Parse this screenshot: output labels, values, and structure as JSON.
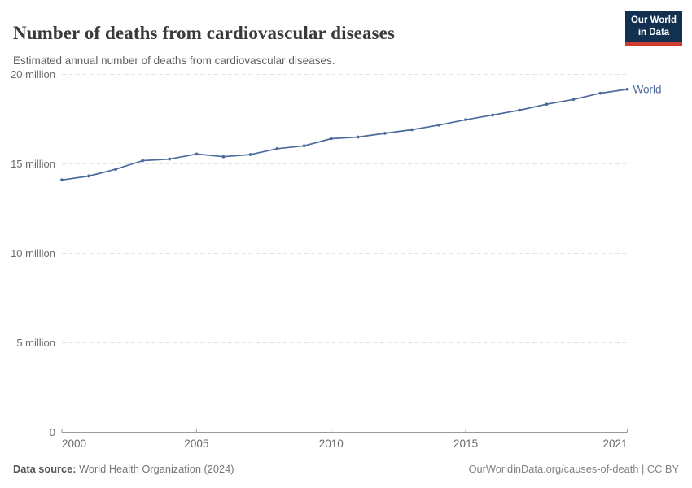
{
  "header": {
    "title": "Number of deaths from cardiovascular diseases",
    "subtitle": "Estimated annual number of deaths from cardiovascular diseases.",
    "logo": {
      "line1": "Our World",
      "line2": "in Data",
      "background_color": "#12304f",
      "stripe_color": "#cf3a31"
    }
  },
  "chart_data": {
    "type": "line",
    "title": "Number of deaths from cardiovascular diseases",
    "subtitle": "Estimated annual number of deaths from cardiovascular diseases.",
    "xlabel": "",
    "ylabel": "",
    "xlim": [
      2000,
      2021
    ],
    "ylim": [
      0,
      20000000
    ],
    "grid": "horizontal-dashed",
    "legend_position": "end-of-line",
    "x_ticks": [
      {
        "value": 2000,
        "label": "2000"
      },
      {
        "value": 2005,
        "label": "2005"
      },
      {
        "value": 2010,
        "label": "2010"
      },
      {
        "value": 2015,
        "label": "2015"
      },
      {
        "value": 2021,
        "label": "2021"
      }
    ],
    "y_ticks": [
      {
        "value": 0,
        "label": "0"
      },
      {
        "value": 5000000,
        "label": "5 million"
      },
      {
        "value": 10000000,
        "label": "10 million"
      },
      {
        "value": 15000000,
        "label": "15 million"
      },
      {
        "value": 20000000,
        "label": "20 million"
      }
    ],
    "series": [
      {
        "name": "World",
        "color": "#4c6a9c",
        "x": [
          2000,
          2001,
          2002,
          2003,
          2004,
          2005,
          2006,
          2007,
          2008,
          2009,
          2010,
          2011,
          2012,
          2013,
          2014,
          2015,
          2016,
          2017,
          2018,
          2019,
          2020,
          2021
        ],
        "values": [
          14100000,
          14320000,
          14700000,
          15180000,
          15270000,
          15550000,
          15400000,
          15520000,
          15850000,
          16010000,
          16410000,
          16500000,
          16710000,
          16910000,
          17170000,
          17470000,
          17730000,
          18000000,
          18330000,
          18600000,
          18950000,
          19170000
        ]
      }
    ]
  },
  "footer": {
    "source_label": "Data source:",
    "source_value": " World Health Organization (2024)",
    "license_url": "OurWorldinData.org/causes-of-death",
    "license_suffix": " | CC BY"
  },
  "colors": {
    "series_world": "#4c6a9c",
    "gridline": "#e4e4e4",
    "axis": "#9a9a9a",
    "tick_label": "#6b6b6b",
    "title": "#3a3a3a",
    "subtitle": "#606060"
  }
}
